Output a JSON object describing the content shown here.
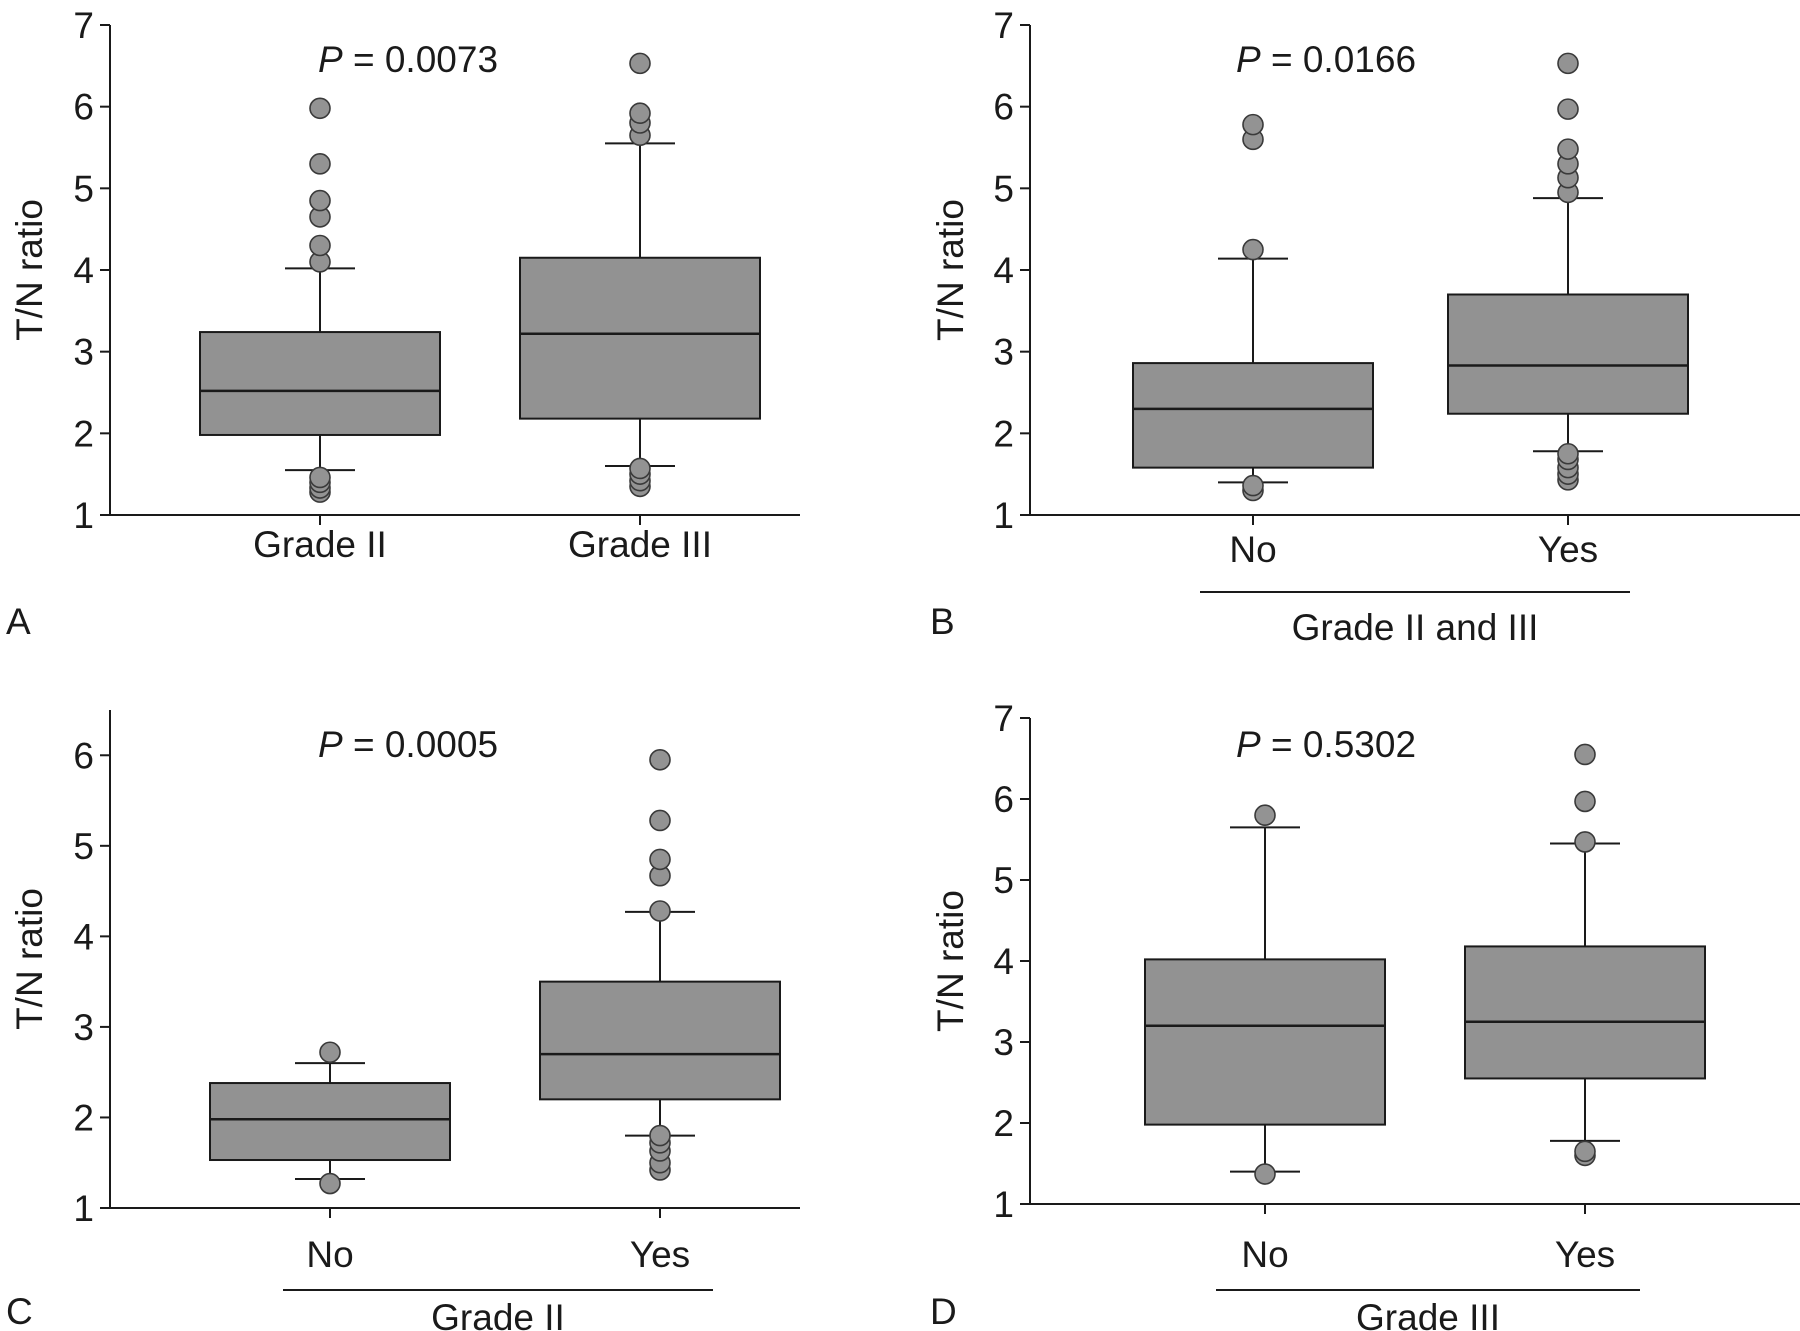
{
  "chart_data": [
    {
      "type": "boxplot",
      "panel_letter": "A",
      "ylabel": "T/N ratio",
      "ylim": [
        1,
        7
      ],
      "yticks": [
        1,
        2,
        3,
        4,
        5,
        6,
        7
      ],
      "p_prefix": "P",
      "p_text": " = 0.0073",
      "group_label": "",
      "categories": [
        "Grade II",
        "Grade III"
      ],
      "boxes": [
        {
          "q1": 1.98,
          "median": 2.52,
          "q3": 3.24,
          "whisker_low": 1.55,
          "whisker_high": 4.02,
          "outliers": [
            1.28,
            1.33,
            1.4,
            1.46,
            4.1,
            4.3,
            4.65,
            4.85,
            5.3,
            5.98
          ]
        },
        {
          "q1": 2.18,
          "median": 3.22,
          "q3": 4.15,
          "whisker_low": 1.6,
          "whisker_high": 5.55,
          "outliers": [
            1.35,
            1.42,
            1.5,
            1.57,
            5.65,
            5.8,
            5.92,
            6.53
          ]
        }
      ]
    },
    {
      "type": "boxplot",
      "panel_letter": "B",
      "ylabel": "T/N ratio",
      "ylim": [
        1,
        7
      ],
      "yticks": [
        1,
        2,
        3,
        4,
        5,
        6,
        7
      ],
      "p_prefix": "P",
      "p_text": " = 0.0166",
      "group_label": "Grade II and III",
      "categories": [
        "No",
        "Yes"
      ],
      "boxes": [
        {
          "q1": 1.58,
          "median": 2.3,
          "q3": 2.86,
          "whisker_low": 1.4,
          "whisker_high": 4.14,
          "outliers": [
            1.3,
            1.36,
            4.25,
            5.6,
            5.78
          ]
        },
        {
          "q1": 2.24,
          "median": 2.83,
          "q3": 3.7,
          "whisker_low": 1.78,
          "whisker_high": 4.88,
          "outliers": [
            1.43,
            1.5,
            1.58,
            1.68,
            1.75,
            4.95,
            5.13,
            5.3,
            5.48,
            5.97,
            6.53
          ]
        }
      ]
    },
    {
      "type": "boxplot",
      "panel_letter": "C",
      "ylabel": "T/N ratio",
      "ylim": [
        1,
        6.5
      ],
      "yticks": [
        1,
        2,
        3,
        4,
        5,
        6
      ],
      "p_prefix": "P",
      "p_text": " = 0.0005",
      "group_label": "Grade II",
      "categories": [
        "No",
        "Yes"
      ],
      "boxes": [
        {
          "q1": 1.53,
          "median": 1.98,
          "q3": 2.38,
          "whisker_low": 1.32,
          "whisker_high": 2.6,
          "outliers": [
            1.27,
            2.72
          ]
        },
        {
          "q1": 2.2,
          "median": 2.7,
          "q3": 3.5,
          "whisker_low": 1.8,
          "whisker_high": 4.27,
          "outliers": [
            1.42,
            1.5,
            1.63,
            1.72,
            1.8,
            4.28,
            4.67,
            4.85,
            5.28,
            5.95
          ]
        }
      ]
    },
    {
      "type": "boxplot",
      "panel_letter": "D",
      "ylabel": "T/N ratio",
      "ylim": [
        1,
        7
      ],
      "yticks": [
        1,
        2,
        3,
        4,
        5,
        6,
        7
      ],
      "p_prefix": "P",
      "p_text": " = 0.5302",
      "group_label": "Grade III",
      "categories": [
        "No",
        "Yes"
      ],
      "boxes": [
        {
          "q1": 1.98,
          "median": 3.2,
          "q3": 4.02,
          "whisker_low": 1.4,
          "whisker_high": 5.65,
          "outliers": [
            1.37,
            5.8
          ]
        },
        {
          "q1": 2.55,
          "median": 3.25,
          "q3": 4.18,
          "whisker_low": 1.78,
          "whisker_high": 5.45,
          "outliers": [
            1.6,
            1.65,
            5.47,
            5.97,
            6.55
          ]
        }
      ]
    }
  ]
}
